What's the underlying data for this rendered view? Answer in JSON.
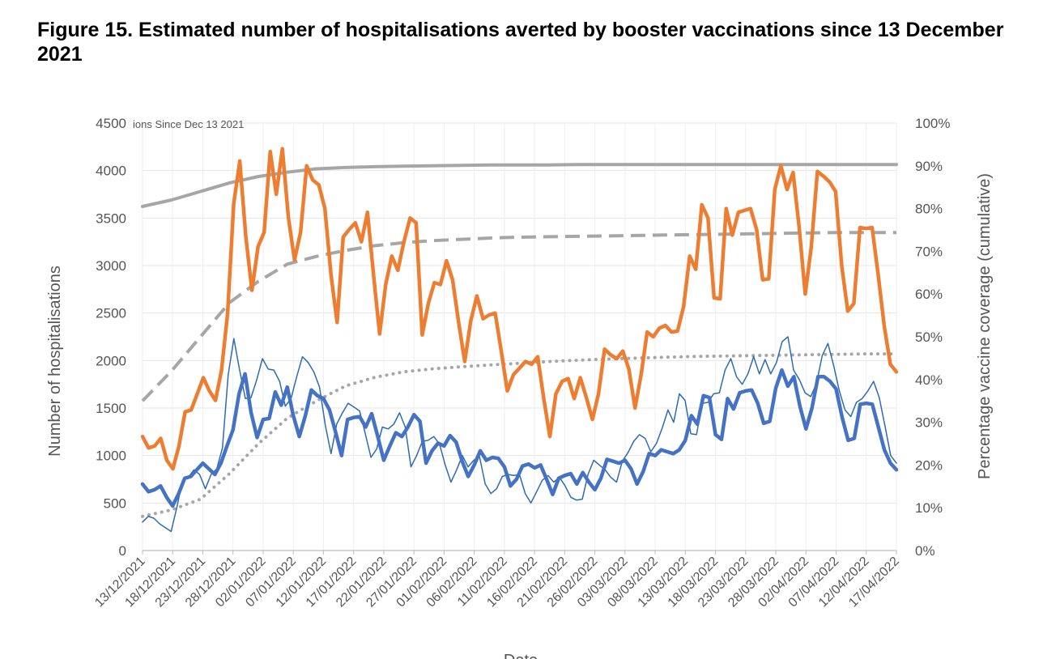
{
  "figure_title": "Figure 15. Estimated number of hospitalisations averted by booster vaccinations since 13 December 2021",
  "chart_data": {
    "type": "line",
    "title": "",
    "title_fragment": "ions Since Dec 13 2021",
    "xlabel": "Date",
    "ylabel": "Number of hospitalisations",
    "y2label": "Percentage vaccine coverage (cumulative)",
    "ylim": [
      0,
      4500
    ],
    "y2lim": [
      0,
      100
    ],
    "yticks": [
      "0",
      "500",
      "1000",
      "1500",
      "2000",
      "2500",
      "3000",
      "3500",
      "4000",
      "4500"
    ],
    "y2ticks": [
      "0%",
      "10%",
      "20%",
      "30%",
      "40%",
      "50%",
      "60%",
      "70%",
      "80%",
      "90%",
      "100%"
    ],
    "xticks": [
      "13/12/2021",
      "18/12/2021",
      "23/12/2021",
      "28/12/2021",
      "02/01/2022",
      "07/01/2022",
      "12/01/2022",
      "17/01/2022",
      "22/01/2022",
      "27/01/2022",
      "01/02/2022",
      "06/02/2022",
      "11/02/2022",
      "16/02/2022",
      "21/02/2022",
      "26/02/2022",
      "03/03/2022",
      "08/03/2022",
      "13/03/2022",
      "18/03/2022",
      "23/03/2022",
      "28/03/2022",
      "02/04/2022",
      "07/04/2022",
      "12/04/2022",
      "17/04/2022"
    ],
    "grid": true,
    "x_start": "13/12/2021",
    "series": [
      {
        "color": "#ED7D31",
        "axis": "left",
        "style": "thick",
        "values": [
          1200,
          1080,
          1100,
          1180,
          950,
          860,
          1100,
          1460,
          1480,
          1650,
          1820,
          1680,
          1580,
          1900,
          2500,
          3650,
          4100,
          3300,
          2740,
          3200,
          3350,
          4200,
          3750,
          4230,
          3500,
          3060,
          3350,
          4050,
          3900,
          3850,
          3600,
          2900,
          2400,
          3300,
          3380,
          3450,
          3250,
          3560,
          2900,
          2280,
          2800,
          3100,
          2950,
          3250,
          3500,
          3450,
          2270,
          2600,
          2820,
          2800,
          3050,
          2850,
          2400,
          1990,
          2420,
          2680,
          2440,
          2480,
          2500,
          2100,
          1680,
          1850,
          1920,
          1990,
          1960,
          2040,
          1600,
          1200,
          1650,
          1780,
          1810,
          1600,
          1820,
          1610,
          1380,
          1650,
          2120,
          2060,
          2020,
          2100,
          1910,
          1500,
          1850,
          2300,
          2250,
          2340,
          2370,
          2300,
          2310,
          2570,
          3100,
          2960,
          3640,
          3500,
          2660,
          2650,
          3600,
          3320,
          3560,
          3580,
          3600,
          3380,
          2850,
          2860,
          3800,
          4050,
          3800,
          3980,
          3400,
          2700,
          3200,
          3990,
          3940,
          3880,
          3780,
          3000,
          2520,
          2600,
          3400,
          3390,
          3400,
          2900,
          2360,
          1960,
          1880
        ]
      },
      {
        "color": "#4472C4",
        "axis": "left",
        "style": "thick",
        "values": [
          700,
          620,
          640,
          680,
          560,
          470,
          600,
          760,
          780,
          850,
          920,
          860,
          800,
          920,
          1100,
          1270,
          1650,
          1860,
          1450,
          1190,
          1380,
          1390,
          1670,
          1530,
          1720,
          1420,
          1200,
          1420,
          1690,
          1630,
          1600,
          1480,
          1250,
          1000,
          1380,
          1400,
          1410,
          1300,
          1440,
          1200,
          950,
          1100,
          1240,
          1200,
          1300,
          1430,
          1360,
          920,
          1050,
          1130,
          1100,
          1210,
          1140,
          940,
          780,
          900,
          1050,
          950,
          980,
          970,
          880,
          680,
          750,
          890,
          910,
          870,
          900,
          750,
          590,
          760,
          790,
          810,
          700,
          820,
          720,
          640,
          760,
          960,
          940,
          920,
          950,
          860,
          700,
          830,
          1020,
          1000,
          1060,
          1040,
          1020,
          1060,
          1160,
          1420,
          1330,
          1630,
          1610,
          1220,
          1170,
          1600,
          1490,
          1660,
          1680,
          1690,
          1550,
          1340,
          1360,
          1710,
          1900,
          1730,
          1830,
          1520,
          1280,
          1500,
          1830,
          1830,
          1780,
          1700,
          1400,
          1160,
          1180,
          1540,
          1550,
          1540,
          1300,
          1060,
          920,
          850
        ]
      },
      {
        "color": "#2E6BB0",
        "axis": "left",
        "style": "thin",
        "values": [
          300,
          360,
          340,
          280,
          240,
          200,
          450,
          740,
          770,
          850,
          800,
          650,
          800,
          860,
          1080,
          1850,
          2230,
          1900,
          1600,
          1610,
          1800,
          2020,
          1910,
          1900,
          1780,
          1520,
          1600,
          1830,
          2040,
          1980,
          1880,
          1720,
          1320,
          1020,
          1330,
          1450,
          1550,
          1510,
          1470,
          1230,
          980,
          1070,
          1300,
          1280,
          1330,
          1450,
          1300,
          880,
          1000,
          1150,
          1160,
          1200,
          1120,
          900,
          720,
          850,
          1000,
          880,
          950,
          990,
          700,
          600,
          650,
          780,
          800,
          790,
          800,
          600,
          500,
          620,
          740,
          790,
          720,
          770,
          680,
          560,
          530,
          540,
          800,
          950,
          900,
          850,
          770,
          720,
          940,
          1030,
          1150,
          1220,
          1180,
          1040,
          1130,
          1290,
          1480,
          1350,
          1650,
          1580,
          1230,
          1220,
          1550,
          1560,
          1650,
          1660,
          1900,
          2020,
          1830,
          1750,
          1860,
          2040,
          1860,
          2010,
          1860,
          1980,
          2200,
          2250,
          1900,
          1800,
          1660,
          1620,
          1760,
          2050,
          2180,
          1950,
          1680,
          1480,
          1410,
          1560,
          1600,
          1680,
          1780,
          1610,
          1310,
          1000,
          920
        ]
      },
      {
        "color": "#A6A6A6",
        "axis": "right",
        "style": "solid",
        "values": [
          80.5,
          82,
          84,
          86,
          87.5,
          88.5,
          89.3,
          89.6,
          89.8,
          89.9,
          90.0,
          90.1,
          90.2,
          90.2,
          90.2,
          90.3,
          90.3,
          90.3,
          90.3,
          90.3,
          90.3,
          90.3,
          90.3,
          90.3,
          90.3,
          90.3,
          90.3
        ]
      },
      {
        "color": "#A6A6A6",
        "axis": "right",
        "style": "dashed",
        "values": [
          35,
          42,
          50,
          58,
          63,
          67,
          68.8,
          70.2,
          71.3,
          72.0,
          72.5,
          72.8,
          73.1,
          73.3,
          73.4,
          73.5,
          73.6,
          73.7,
          73.8,
          73.9,
          74.0,
          74.1,
          74.2,
          74.3,
          74.4,
          74.4,
          74.4
        ]
      },
      {
        "color": "#A6A6A6",
        "axis": "right",
        "style": "dotted",
        "values": [
          8,
          9.5,
          12,
          18,
          25,
          31,
          35,
          38.5,
          40.5,
          41.8,
          42.5,
          43,
          43.4,
          43.8,
          44.2,
          44.5,
          44.8,
          45,
          45.2,
          45.4,
          45.5,
          45.6,
          45.7,
          45.8,
          45.9,
          46,
          46
        ]
      }
    ]
  }
}
